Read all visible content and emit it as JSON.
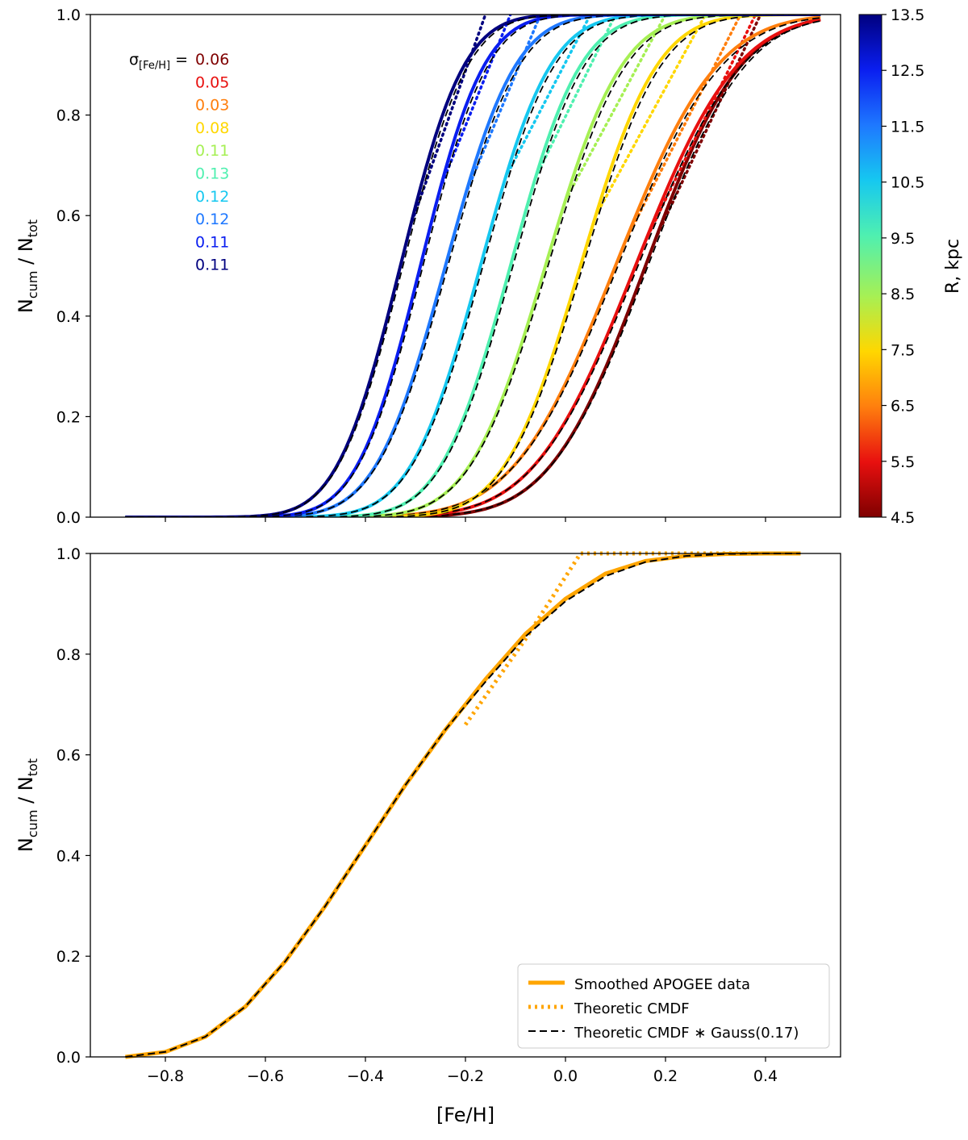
{
  "chart_data": [
    {
      "type": "line",
      "panel": "top",
      "title": "",
      "xlabel": "",
      "ylabel": "N_cum / N_tot",
      "ylabel_main": "N",
      "ylabel_sub1": "cum",
      "ylabel_slash": " / N",
      "ylabel_sub2": "tot",
      "xlim": [
        -0.95,
        0.55
      ],
      "ylim": [
        0.0,
        1.0
      ],
      "xticks": [
        -0.8,
        -0.6,
        -0.4,
        -0.2,
        0.0,
        0.2,
        0.4
      ],
      "yticks": [
        0.0,
        0.2,
        0.4,
        0.6,
        0.8,
        1.0
      ],
      "ytick_labels": [
        "0.0",
        "0.2",
        "0.4",
        "0.6",
        "0.8",
        "1.0"
      ],
      "colorbar": {
        "label": "R,  kpc",
        "range": [
          4.5,
          13.5
        ],
        "ticks": [
          4.5,
          5.5,
          6.5,
          7.5,
          8.5,
          9.5,
          10.5,
          11.5,
          12.5,
          13.5
        ],
        "tick_labels": [
          "4.5",
          "5.5",
          "6.5",
          "7.5",
          "8.5",
          "9.5",
          "10.5",
          "11.5",
          "12.5",
          "13.5"
        ]
      },
      "sigma_label": {
        "symbol": "σ",
        "sub": "[Fe/H]",
        "eq": " ="
      },
      "series": [
        {
          "name": "R=4.5 kpc",
          "color": "#7f0000",
          "sigma": "0.06",
          "mu": 0.16,
          "width": 0.15,
          "dotted_start": 0.18,
          "dotted_end": 0.39
        },
        {
          "name": "R=5.5 kpc",
          "color": "#e8100f",
          "sigma": "0.05",
          "mu": 0.14,
          "width": 0.16,
          "dotted_start": 0.16,
          "dotted_end": 0.38
        },
        {
          "name": "R=6.5 kpc",
          "color": "#ff7f0e",
          "sigma": "0.03",
          "mu": 0.1,
          "width": 0.16,
          "dotted_start": 0.12,
          "dotted_end": 0.35
        },
        {
          "name": "R=7.5 kpc",
          "color": "#ffd700",
          "sigma": "0.08",
          "mu": 0.03,
          "width": 0.12,
          "dotted_start": 0.06,
          "dotted_end": 0.28
        },
        {
          "name": "R=8.5 kpc",
          "color": "#a6f054",
          "sigma": "0.11",
          "mu": -0.04,
          "width": 0.12,
          "dotted_start": 0.0,
          "dotted_end": 0.2
        },
        {
          "name": "R=9.5 kpc",
          "color": "#4ff0b0",
          "sigma": "0.13",
          "mu": -0.11,
          "width": 0.11,
          "dotted_start": -0.06,
          "dotted_end": 0.1
        },
        {
          "name": "R=10.5 kpc",
          "color": "#16c8f0",
          "sigma": "0.12",
          "mu": -0.17,
          "width": 0.11,
          "dotted_start": -0.12,
          "dotted_end": 0.05
        },
        {
          "name": "R=11.5 kpc",
          "color": "#1e78ff",
          "sigma": "0.12",
          "mu": -0.24,
          "width": 0.11,
          "dotted_start": -0.2,
          "dotted_end": -0.05
        },
        {
          "name": "R=12.5 kpc",
          "color": "#0a1ef0",
          "sigma": "0.11",
          "mu": -0.29,
          "width": 0.1,
          "dotted_start": -0.25,
          "dotted_end": -0.11
        },
        {
          "name": "R=13.5 kpc",
          "color": "#00007f",
          "sigma": "0.11",
          "mu": -0.33,
          "width": 0.1,
          "dotted_start": -0.31,
          "dotted_end": -0.16
        }
      ]
    },
    {
      "type": "line",
      "panel": "bottom",
      "title": "",
      "xlabel": "[Fe/H]",
      "ylabel": "N_cum / N_tot",
      "ylabel_main": "N",
      "ylabel_sub1": "cum",
      "ylabel_slash": " / N",
      "ylabel_sub2": "tot",
      "xlim": [
        -0.95,
        0.55
      ],
      "ylim": [
        0.0,
        1.0
      ],
      "xticks": [
        -0.8,
        -0.6,
        -0.4,
        -0.2,
        0.0,
        0.2,
        0.4
      ],
      "xtick_labels": [
        "−0.8",
        "−0.6",
        "−0.4",
        "−0.2",
        "0.0",
        "0.2",
        "0.4"
      ],
      "yticks": [
        0.0,
        0.2,
        0.4,
        0.6,
        0.8,
        1.0
      ],
      "ytick_labels": [
        "0.0",
        "0.2",
        "0.4",
        "0.6",
        "0.8",
        "1.0"
      ],
      "series": [
        {
          "name": "Smoothed APOGEE data",
          "style": "solid",
          "color": "#ffa500",
          "x": [
            -0.88,
            -0.8,
            -0.72,
            -0.64,
            -0.56,
            -0.48,
            -0.4,
            -0.32,
            -0.24,
            -0.16,
            -0.08,
            0.0,
            0.08,
            0.16,
            0.24,
            0.32,
            0.4,
            0.47
          ],
          "y": [
            0.0,
            0.01,
            0.04,
            0.1,
            0.19,
            0.3,
            0.42,
            0.54,
            0.65,
            0.75,
            0.84,
            0.91,
            0.96,
            0.985,
            0.995,
            0.999,
            1.0,
            1.0
          ]
        },
        {
          "name": "Theoretic CMDF",
          "style": "dotted",
          "color": "#ffa500",
          "x": [
            -0.2,
            -0.08,
            0.03,
            0.47
          ],
          "y": [
            0.66,
            0.83,
            1.0,
            1.0
          ]
        },
        {
          "name": "Theoretic CMDF ∗ Gauss(0.17)",
          "style": "dashed",
          "color": "#000000",
          "x": [
            -0.88,
            -0.8,
            -0.72,
            -0.64,
            -0.56,
            -0.48,
            -0.4,
            -0.32,
            -0.24,
            -0.16,
            -0.08,
            0.0,
            0.08,
            0.16,
            0.24,
            0.32,
            0.4,
            0.47
          ],
          "y": [
            0.0,
            0.01,
            0.04,
            0.1,
            0.19,
            0.3,
            0.42,
            0.54,
            0.65,
            0.745,
            0.835,
            0.905,
            0.955,
            0.983,
            0.995,
            0.999,
            1.0,
            1.0
          ]
        }
      ],
      "legend": {
        "placement": "bottom-right",
        "entries": [
          "Smoothed APOGEE data",
          "Theoretic CMDF",
          "Theoretic CMDF ∗ Gauss(0.17)"
        ]
      }
    }
  ]
}
